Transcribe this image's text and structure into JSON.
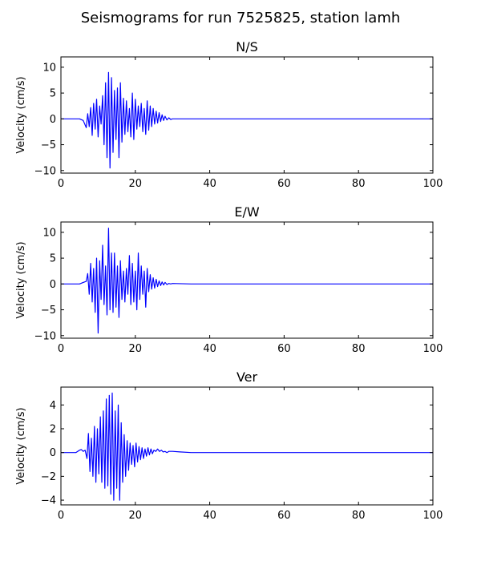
{
  "figure": {
    "title": "Seismograms for run 7525825, station lamh"
  },
  "chart_data": [
    {
      "type": "line",
      "title": "N/S",
      "xlabel": "",
      "ylabel": "Velocity (cm/s)",
      "xlim": [
        0,
        100
      ],
      "ylim": [
        -10.5,
        12
      ],
      "xticks": [
        0,
        20,
        40,
        60,
        80,
        100
      ],
      "yticks": [
        -10,
        -5,
        0,
        5,
        10
      ],
      "grid": false,
      "color": "#0000ff",
      "x": [
        0,
        5,
        6,
        6.8,
        7.2,
        7.6,
        8.0,
        8.4,
        8.8,
        9.2,
        9.6,
        10.0,
        10.4,
        10.8,
        11.2,
        11.6,
        12.0,
        12.4,
        12.8,
        13.2,
        13.6,
        14.0,
        14.4,
        14.8,
        15.2,
        15.6,
        16.0,
        16.4,
        16.8,
        17.2,
        17.6,
        18.0,
        18.4,
        18.8,
        19.2,
        19.6,
        20.0,
        20.4,
        20.8,
        21.2,
        21.6,
        22.0,
        22.4,
        22.8,
        23.2,
        23.6,
        24.0,
        24.4,
        24.8,
        25.2,
        25.6,
        26.0,
        26.4,
        26.8,
        27.2,
        27.6,
        28.0,
        28.5,
        29.0,
        29.5,
        30,
        35,
        40,
        60,
        80,
        100
      ],
      "y": [
        0,
        0,
        -0.3,
        -1.7,
        1.0,
        -1.5,
        2.2,
        -3.2,
        3.0,
        -2.0,
        3.8,
        -3.5,
        2.5,
        -1.0,
        4.5,
        -5.0,
        7.0,
        -7.5,
        9.0,
        -9.5,
        8.0,
        -6.5,
        5.5,
        -4.0,
        6.0,
        -7.5,
        7.0,
        -4.5,
        4.0,
        -3.0,
        3.5,
        -2.5,
        2.0,
        -3.5,
        5.0,
        -4.0,
        3.8,
        -2.0,
        2.5,
        -1.5,
        3.0,
        -2.5,
        2.0,
        -3.0,
        3.5,
        -2.2,
        2.5,
        -1.5,
        2.0,
        -1.0,
        1.5,
        -0.8,
        1.2,
        -0.5,
        0.8,
        -0.3,
        0.5,
        -0.2,
        0.2,
        -0.1,
        0,
        0,
        0,
        0,
        0,
        0
      ]
    },
    {
      "type": "line",
      "title": "E/W",
      "xlabel": "",
      "ylabel": "Velocity (cm/s)",
      "xlim": [
        0,
        100
      ],
      "ylim": [
        -10.5,
        12
      ],
      "xticks": [
        0,
        20,
        40,
        60,
        80,
        100
      ],
      "yticks": [
        -10,
        -5,
        0,
        5,
        10
      ],
      "grid": false,
      "color": "#0000ff",
      "x": [
        0,
        5,
        6,
        6.8,
        7.2,
        7.6,
        8.0,
        8.4,
        8.8,
        9.2,
        9.6,
        10.0,
        10.4,
        10.8,
        11.2,
        11.6,
        12.0,
        12.4,
        12.8,
        13.2,
        13.6,
        14.0,
        14.4,
        14.8,
        15.2,
        15.6,
        16.0,
        16.4,
        16.8,
        17.2,
        17.6,
        18.0,
        18.4,
        18.8,
        19.2,
        19.6,
        20.0,
        20.4,
        20.8,
        21.2,
        21.6,
        22.0,
        22.4,
        22.8,
        23.2,
        23.6,
        24.0,
        24.4,
        24.8,
        25.2,
        25.6,
        26.0,
        26.4,
        26.8,
        27.2,
        27.6,
        28.0,
        28.5,
        29.0,
        29.5,
        30,
        35,
        40,
        60,
        80,
        100
      ],
      "y": [
        0,
        0,
        0.3,
        0.5,
        2.0,
        -2.0,
        4.0,
        -3.5,
        3.0,
        -5.5,
        5.0,
        -9.5,
        4.5,
        -3.0,
        7.5,
        -4.0,
        3.5,
        -6.0,
        10.8,
        -5.0,
        6.0,
        -5.5,
        6.0,
        -4.5,
        3.5,
        -6.5,
        4.5,
        -3.0,
        2.5,
        -3.5,
        3.0,
        -2.0,
        5.5,
        -4.0,
        4.0,
        -3.5,
        2.5,
        -5.0,
        6.0,
        -3.0,
        3.5,
        -2.0,
        2.5,
        -4.5,
        3.0,
        -1.5,
        1.8,
        -1.0,
        1.2,
        -0.8,
        0.9,
        -0.5,
        0.6,
        -0.3,
        0.4,
        -0.2,
        0.3,
        -0.1,
        0.1,
        0,
        0.1,
        0,
        0,
        0,
        0,
        0
      ]
    },
    {
      "type": "line",
      "title": "Ver",
      "xlabel": "",
      "ylabel": "Velocity (cm/s)",
      "xlim": [
        0,
        100
      ],
      "ylim": [
        -4.4,
        5.5
      ],
      "xticks": [
        0,
        20,
        40,
        60,
        80,
        100
      ],
      "yticks": [
        -4,
        -2,
        0,
        2,
        4
      ],
      "grid": false,
      "color": "#0000ff",
      "x": [
        0,
        4,
        5,
        5.5,
        6.0,
        6.5,
        7.0,
        7.4,
        7.8,
        8.2,
        8.6,
        9.0,
        9.4,
        9.8,
        10.2,
        10.6,
        11.0,
        11.4,
        11.8,
        12.2,
        12.6,
        13.0,
        13.4,
        13.8,
        14.2,
        14.6,
        15.0,
        15.4,
        15.8,
        16.2,
        16.6,
        17.0,
        17.4,
        17.8,
        18.2,
        18.6,
        19.0,
        19.4,
        19.8,
        20.2,
        20.6,
        21.0,
        21.4,
        21.8,
        22.2,
        22.6,
        23.0,
        23.4,
        23.8,
        24.2,
        24.6,
        25.0,
        25.5,
        26.0,
        26.5,
        27.0,
        27.5,
        28.0,
        28.5,
        29.0,
        30,
        32,
        35,
        40,
        60,
        80,
        100
      ],
      "y": [
        0,
        0,
        0.2,
        0.25,
        0.1,
        0.2,
        -0.5,
        1.6,
        -1.6,
        1.2,
        -2.0,
        2.2,
        -2.5,
        2.0,
        -1.8,
        3.0,
        -2.5,
        3.5,
        -3.0,
        4.5,
        -2.8,
        4.8,
        -3.5,
        5.0,
        -4.0,
        3.5,
        -3.0,
        4.0,
        -4.0,
        2.5,
        -2.5,
        1.5,
        -2.0,
        1.0,
        -1.5,
        0.8,
        -1.0,
        0.6,
        -1.2,
        0.8,
        -0.8,
        0.5,
        -0.6,
        0.4,
        -0.5,
        0.3,
        -0.3,
        0.4,
        -0.2,
        0.3,
        -0.1,
        0.2,
        0.1,
        0.3,
        0.1,
        0.2,
        0.05,
        0.1,
        0,
        0.1,
        0.1,
        0.05,
        0,
        0,
        0,
        0,
        0
      ]
    }
  ]
}
